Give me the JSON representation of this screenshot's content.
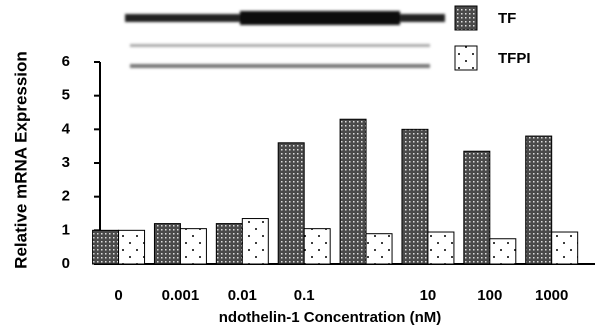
{
  "chart_data": {
    "type": "bar",
    "xlabel": "ndothelin-1 Concentration (nM)",
    "ylabel": "Relative mRNA Expression",
    "categories": [
      "0",
      "0.001",
      "0.01",
      "0.1",
      null,
      "10",
      "100",
      "1000"
    ],
    "series": [
      {
        "name": "TF",
        "color": "#4a4a4a",
        "values": [
          1.0,
          1.2,
          1.2,
          3.6,
          4.3,
          4.0,
          3.35,
          3.8
        ]
      },
      {
        "name": "TFPI",
        "color": "#ffffff",
        "values": [
          1.0,
          1.05,
          1.35,
          1.05,
          0.9,
          0.95,
          0.75,
          0.95
        ]
      }
    ],
    "ylim": [
      0,
      6
    ],
    "yticks": [
      0,
      1,
      2,
      3,
      4,
      5,
      6
    ]
  }
}
